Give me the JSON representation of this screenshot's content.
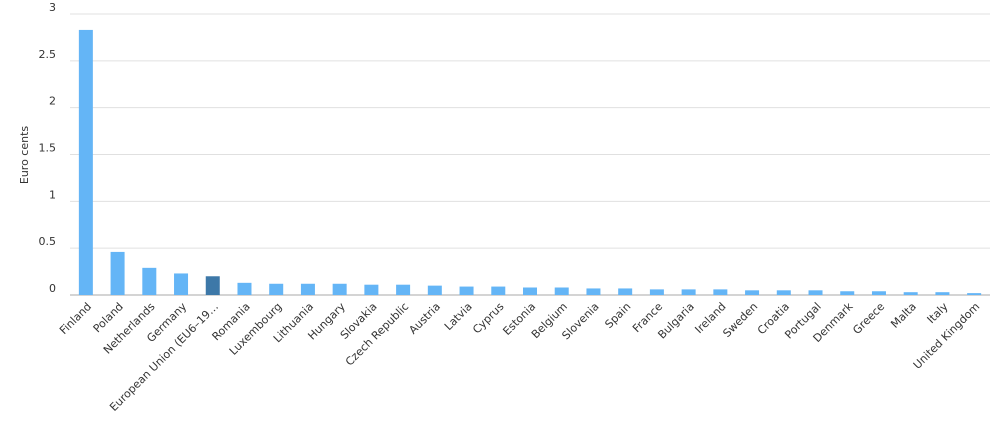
{
  "chart_data": {
    "type": "bar",
    "y_label": "Euro cents",
    "categories": [
      "Finland",
      "Poland",
      "Netherlands",
      "Germany",
      "European Union (EU6–19…",
      "Romania",
      "Luxembourg",
      "Lithuania",
      "Hungary",
      "Slovakia",
      "Czech Republic",
      "Austria",
      "Latvia",
      "Cyprus",
      "Estonia",
      "Belgium",
      "Slovenia",
      "Spain",
      "France",
      "Bulgaria",
      "Ireland",
      "Sweden",
      "Croatia",
      "Portugal",
      "Denmark",
      "Greece",
      "Malta",
      "Italy",
      "United Kingdom"
    ],
    "values": [
      2.83,
      0.46,
      0.29,
      0.23,
      0.2,
      0.13,
      0.12,
      0.12,
      0.12,
      0.11,
      0.11,
      0.1,
      0.09,
      0.09,
      0.08,
      0.08,
      0.07,
      0.07,
      0.06,
      0.06,
      0.06,
      0.05,
      0.05,
      0.05,
      0.04,
      0.04,
      0.03,
      0.03,
      0.02
    ],
    "color": "#64b5f6",
    "highlight": {
      "index": 4,
      "color": "#3d78a8"
    },
    "ylim": [
      0,
      3
    ],
    "yticks": [
      0,
      0.5,
      1,
      1.5,
      2,
      2.5,
      3
    ],
    "grid": true
  }
}
